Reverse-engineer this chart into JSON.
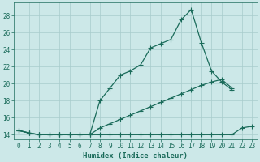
{
  "xlabel": "Humidex (Indice chaleur)",
  "color": "#1a6b5a",
  "bg_color": "#cce8e8",
  "grid_color": "#a8cccc",
  "ylim": [
    13.5,
    29.5
  ],
  "xlim": [
    -0.5,
    23.5
  ],
  "yticks": [
    14,
    16,
    18,
    20,
    22,
    24,
    26,
    28
  ],
  "xticks": [
    0,
    1,
    2,
    3,
    4,
    5,
    6,
    7,
    8,
    9,
    10,
    11,
    12,
    13,
    14,
    15,
    16,
    17,
    18,
    19,
    20,
    21,
    22,
    23
  ],
  "s1_x": [
    0,
    1,
    2,
    3,
    4,
    5,
    6,
    7,
    8,
    9,
    10,
    11,
    12,
    13,
    14,
    15,
    16,
    17,
    18,
    19,
    20,
    21
  ],
  "s1_y": [
    14.5,
    14.2,
    14.0,
    14.0,
    14.0,
    14.0,
    14.0,
    14.0,
    18.0,
    19.5,
    21.0,
    21.5,
    22.2,
    24.2,
    24.7,
    25.2,
    27.5,
    28.7,
    24.8,
    21.5,
    20.2,
    19.3
  ],
  "s2_x": [
    0,
    1,
    2,
    3,
    4,
    5,
    6,
    7,
    8,
    9,
    10,
    11,
    12,
    13,
    14,
    15,
    16,
    17,
    18,
    19,
    20,
    21
  ],
  "s2_y": [
    14.5,
    14.2,
    14.0,
    14.0,
    14.0,
    14.0,
    14.0,
    14.0,
    14.8,
    15.3,
    15.8,
    16.3,
    16.8,
    17.3,
    17.8,
    18.3,
    18.8,
    19.3,
    19.8,
    20.2,
    20.5,
    19.5
  ],
  "s3_x": [
    0,
    1,
    2,
    3,
    4,
    5,
    6,
    7,
    8,
    9,
    10,
    11,
    12,
    13,
    14,
    15,
    16,
    17,
    18,
    19,
    20,
    21,
    22,
    23
  ],
  "s3_y": [
    14.5,
    14.2,
    14.0,
    14.0,
    14.0,
    14.0,
    14.0,
    14.0,
    14.0,
    14.0,
    14.0,
    14.0,
    14.0,
    14.0,
    14.0,
    14.0,
    14.0,
    14.0,
    14.0,
    14.0,
    14.0,
    14.0,
    14.8,
    15.0
  ],
  "xlabel_fontsize": 6.5,
  "tick_fontsize": 5.5,
  "linewidth": 0.9,
  "markersize": 2.0
}
